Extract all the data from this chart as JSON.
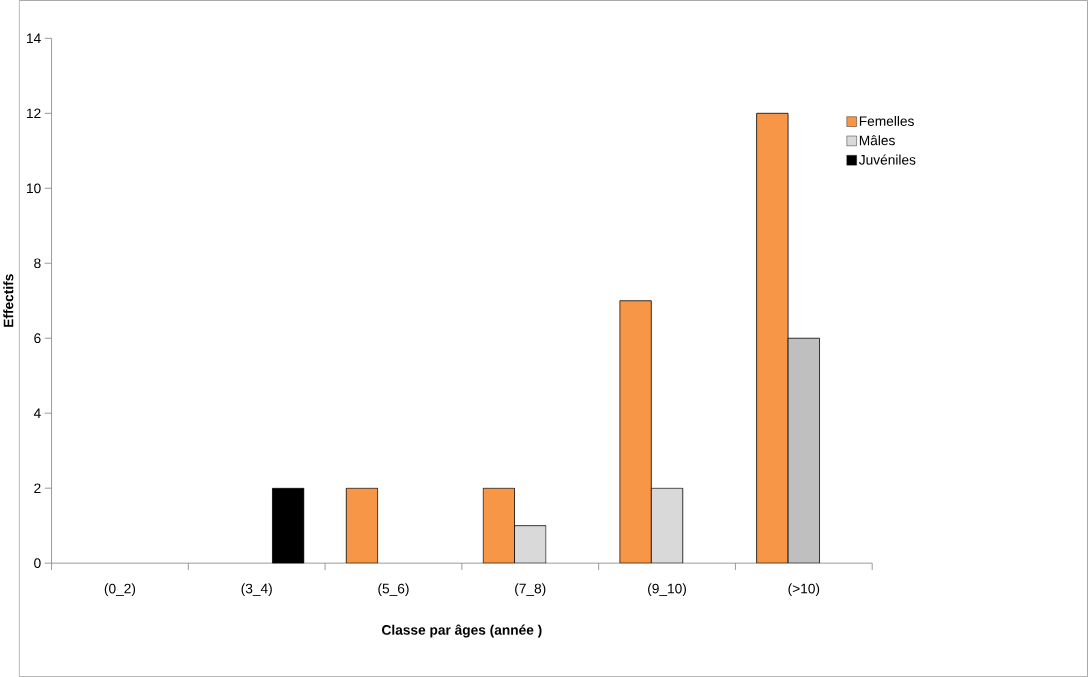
{
  "chart_data": {
    "type": "bar",
    "xlabel": "Classe par âges (année )",
    "ylabel": "Effectifs",
    "categories": [
      "(0_2)",
      "(3_4)",
      "(5_6)",
      "(7_8)",
      "(9_10)",
      "(>10)"
    ],
    "series": [
      {
        "name": "Femelles",
        "color": "#f79646",
        "values": [
          null,
          null,
          2,
          2,
          7,
          12
        ]
      },
      {
        "name": "Mâles",
        "color": "#d9d9d9",
        "colors": [
          "#d9d9d9",
          "#d9d9d9",
          "#d9d9d9",
          "#d9d9d9",
          "#d9d9d9",
          "#bfbfbf"
        ],
        "values": [
          null,
          null,
          null,
          1,
          2,
          6
        ]
      },
      {
        "name": "Juvéniles",
        "color": "#000000",
        "values": [
          null,
          2,
          null,
          null,
          null,
          null
        ]
      }
    ],
    "ylim": [
      0,
      14
    ],
    "yticks": [
      0,
      2,
      4,
      6,
      8,
      10,
      12,
      14
    ],
    "legend": "right",
    "grid": false
  }
}
